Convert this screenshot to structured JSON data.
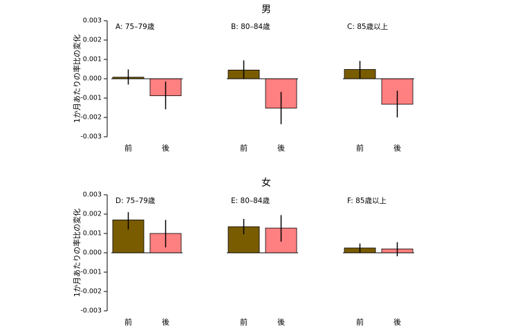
{
  "figure": {
    "rows": [
      {
        "key": "male",
        "title": "男",
        "panels": [
          0,
          1,
          2
        ]
      },
      {
        "key": "female",
        "title": "女",
        "panels": [
          3,
          4,
          5
        ]
      }
    ],
    "ylabel": "1か月あたりの率比の変化",
    "colors": {
      "before": "#7a5c00",
      "after": "#ff8080",
      "errorbar": "#000000",
      "axis": "#000000"
    }
  },
  "chart_data": [
    {
      "type": "bar",
      "panel": "A",
      "title": "A: 75–79歳",
      "group": "男",
      "categories": [
        "前",
        "後"
      ],
      "values": [
        8e-05,
        -0.00088
      ],
      "error_low": [
        -0.0003,
        -0.00158
      ],
      "error_high": [
        0.00048,
        -0.00015
      ],
      "ylim": [
        -0.003,
        0.003
      ],
      "yticks": [
        "0.003",
        "0.002",
        "0.001",
        "0.000",
        "-0.001",
        "-0.002",
        "-0.003"
      ]
    },
    {
      "type": "bar",
      "panel": "B",
      "title": "B: 80–84歳",
      "group": "男",
      "categories": [
        "前",
        "後"
      ],
      "values": [
        0.00045,
        -0.00152
      ],
      "error_low": [
        -2e-05,
        -0.00235
      ],
      "error_high": [
        0.00095,
        -0.00068
      ],
      "ylim": [
        -0.003,
        0.003
      ]
    },
    {
      "type": "bar",
      "panel": "C",
      "title": "C: 85歳以上",
      "group": "男",
      "categories": [
        "前",
        "後"
      ],
      "values": [
        0.00048,
        -0.00132
      ],
      "error_low": [
        0.0,
        -0.002
      ],
      "error_high": [
        0.00092,
        -0.00062
      ],
      "ylim": [
        -0.003,
        0.003
      ]
    },
    {
      "type": "bar",
      "panel": "D",
      "title": "D: 75–79歳",
      "group": "女",
      "categories": [
        "前",
        "後"
      ],
      "values": [
        0.0017,
        0.001
      ],
      "error_low": [
        0.0012,
        0.00028
      ],
      "error_high": [
        0.0021,
        0.0017
      ],
      "ylim": [
        -0.003,
        0.003
      ],
      "yticks": [
        "0.003",
        "0.002",
        "0.001",
        "0.000",
        "-0.001",
        "-0.002",
        "-0.003"
      ]
    },
    {
      "type": "bar",
      "panel": "E",
      "title": "E: 80–84歳",
      "group": "女",
      "categories": [
        "前",
        "後"
      ],
      "values": [
        0.00135,
        0.00128
      ],
      "error_low": [
        0.00095,
        0.00058
      ],
      "error_high": [
        0.00175,
        0.00195
      ],
      "ylim": [
        -0.003,
        0.003
      ]
    },
    {
      "type": "bar",
      "panel": "F",
      "title": "F: 85歳以上",
      "group": "女",
      "categories": [
        "前",
        "後"
      ],
      "values": [
        0.00025,
        0.0002
      ],
      "error_low": [
        0.0,
        -0.00018
      ],
      "error_high": [
        0.00048,
        0.00055
      ],
      "ylim": [
        -0.003,
        0.003
      ]
    }
  ]
}
